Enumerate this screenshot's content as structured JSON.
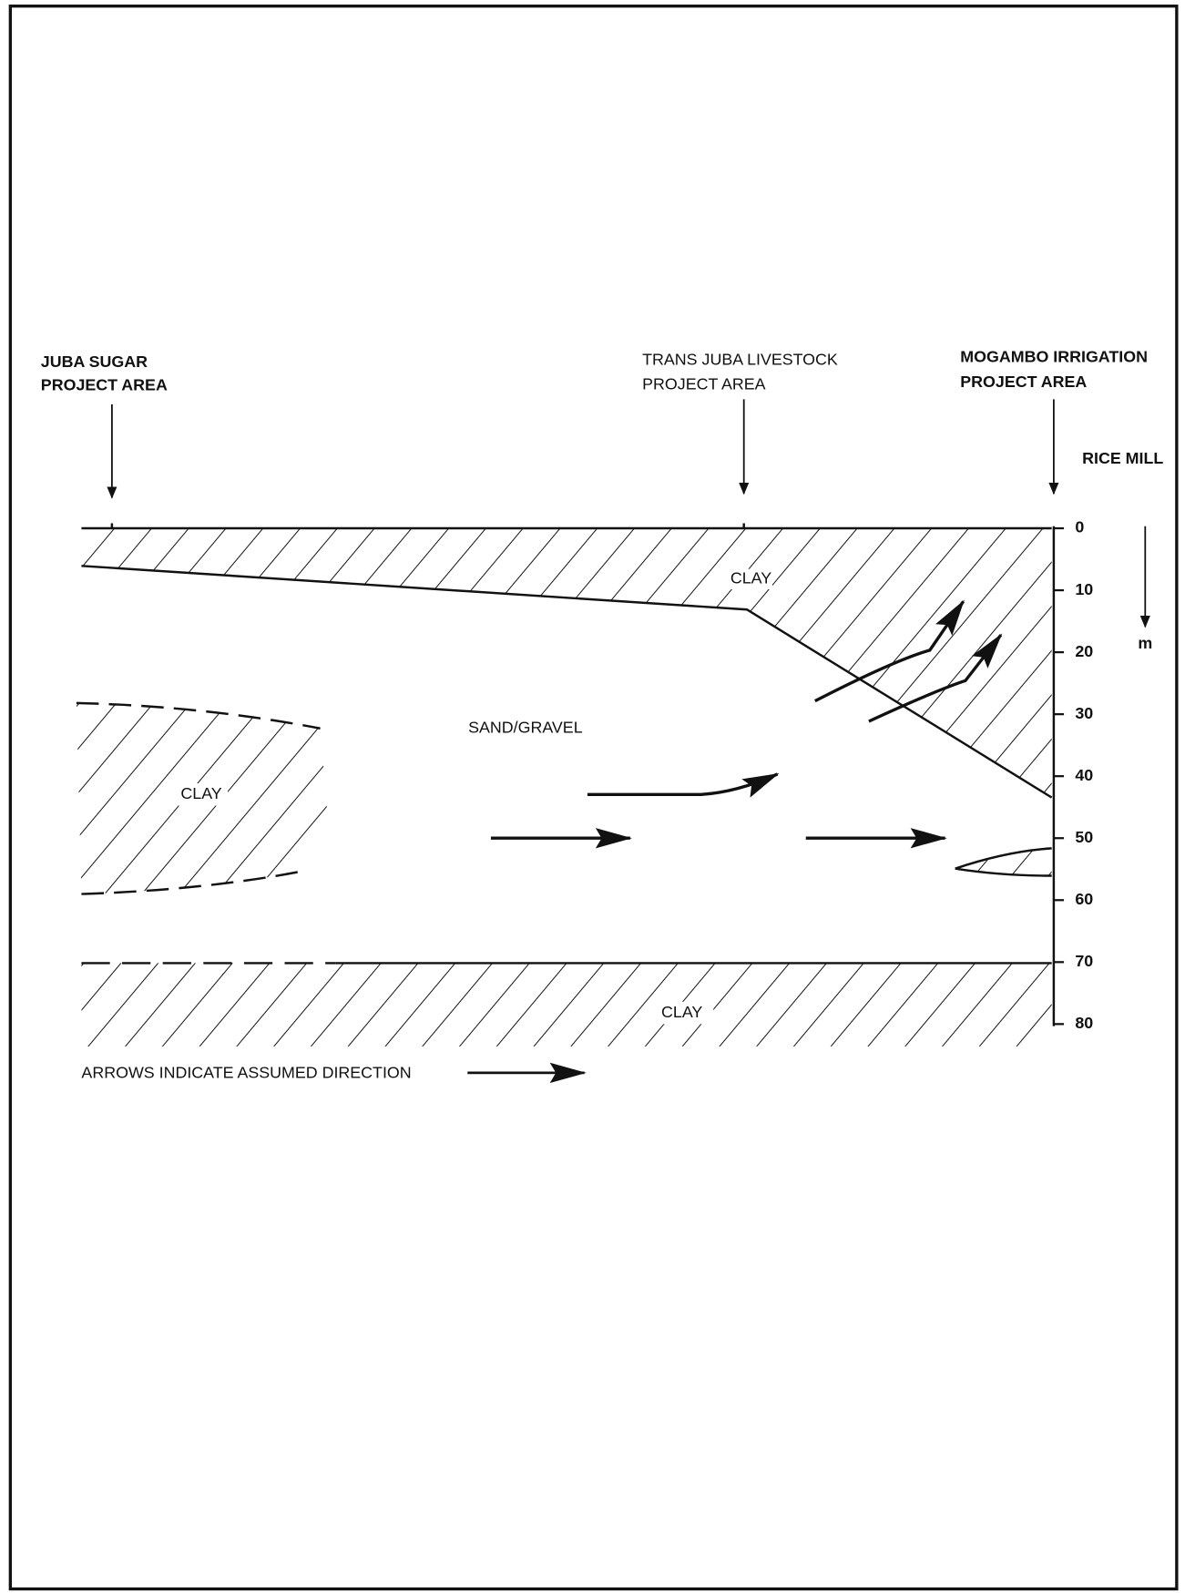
{
  "locations": [
    {
      "lines": [
        "JUBA SUGAR",
        "PROJECT AREA"
      ]
    },
    {
      "lines": [
        "TRANS JUBA LIVESTOCK",
        "PROJECT AREA"
      ]
    },
    {
      "lines": [
        "MOGAMBO IRRIGATION",
        "PROJECT AREA"
      ]
    }
  ],
  "rice_mill": "RICE MILL",
  "layers": {
    "top_clay": "CLAY",
    "left_clay": "CLAY",
    "aquifer": "SAND/GRAVEL",
    "bottom_clay": "CLAY"
  },
  "depth_scale": {
    "ticks": [
      0,
      10,
      20,
      30,
      40,
      50,
      60,
      70,
      80
    ],
    "unit": "m"
  },
  "note": "ARROWS INDICATE ASSUMED DIRECTION"
}
